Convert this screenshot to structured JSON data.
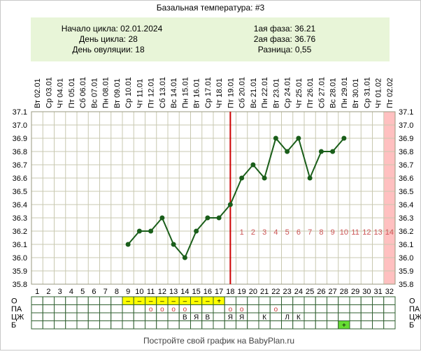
{
  "title": "Базальная температура: #3",
  "info": {
    "cycle_start": "Начало цикла: 02.01.2024",
    "cycle_day": "День цикла: 28",
    "ovulation_day": "День овуляции: 18",
    "phase1": "1ая фаза: 36.21",
    "phase2": "2ая фаза: 36.76",
    "difference": "Разница: 0,55"
  },
  "footer": "Постройте свой график на BabyPlan.ru",
  "chart_data": {
    "type": "line",
    "title": "Базальная температура: #3",
    "ylim": [
      35.8,
      37.1
    ],
    "y_ticks": [
      "35.8",
      "35.9",
      "36.0",
      "36.1",
      "36.2",
      "36.3",
      "36.4",
      "36.5",
      "36.6",
      "36.7",
      "36.8",
      "36.9",
      "37.0",
      "37.1"
    ],
    "dates": [
      "Вт 02.01",
      "Ср 03.01",
      "Чт 04.01",
      "Пт 05.01",
      "Сб 06.01",
      "Вс 07.01",
      "Пн 08.01",
      "Вт 09.01",
      "Ср 10.01",
      "Чт 11.01",
      "Пт 12.01",
      "Сб 13.01",
      "Вс 14.01",
      "Пн 15.01",
      "Вт 16.01",
      "Ср 17.01",
      "Чт 18.01",
      "Пт 19.01",
      "Сб 20.01",
      "Вс 21.01",
      "Пн 22.01",
      "Вт 23.01",
      "Ср 24.01",
      "Чт 25.01",
      "Пт 26.01",
      "Сб 27.01",
      "Вс 28.01",
      "Пн 29.01",
      "Вт 30.01",
      "Ср 31.01",
      "Чт 01.02",
      "Пт 02.02"
    ],
    "days": [
      1,
      2,
      3,
      4,
      5,
      6,
      7,
      8,
      9,
      10,
      11,
      12,
      13,
      14,
      15,
      16,
      17,
      18,
      19,
      20,
      21,
      22,
      23,
      24,
      25,
      26,
      27,
      28,
      29,
      30,
      31,
      32
    ],
    "series": [
      {
        "values": [
          null,
          null,
          null,
          null,
          null,
          null,
          null,
          null,
          36.1,
          36.2,
          36.2,
          36.3,
          36.1,
          36.0,
          36.2,
          36.3,
          36.3,
          36.4,
          36.6,
          36.7,
          36.6,
          36.9,
          36.8,
          36.9,
          36.6,
          36.8,
          36.8,
          36.9,
          null,
          null,
          null,
          null
        ]
      }
    ],
    "ovulation_day": 18,
    "luteal_labels": [
      "1",
      "2",
      "3",
      "4",
      "5",
      "6",
      "7",
      "8",
      "9",
      "10",
      "11",
      "12",
      "13",
      "14"
    ],
    "highlight_day": 32,
    "rows": {
      "labels": [
        "О",
        "ПА",
        "ЦЖ",
        "Б"
      ],
      "O": [
        "",
        "",
        "",
        "",
        "",
        "",
        "",
        "",
        "–",
        "–",
        "–",
        "–",
        "–",
        "–",
        "–",
        "–",
        "+",
        "",
        "",
        "",
        "",
        "",
        "",
        "",
        "",
        "",
        "",
        "",
        "",
        "",
        "",
        ""
      ],
      "PA": [
        "",
        "",
        "",
        "",
        "",
        "",
        "",
        "",
        "",
        "",
        "о",
        "о",
        "о",
        "о",
        "",
        "",
        "",
        "о",
        "о",
        "",
        "",
        "о",
        "",
        "",
        "",
        "",
        "",
        "",
        "",
        "",
        "",
        ""
      ],
      "CZh": [
        "",
        "",
        "",
        "",
        "",
        "",
        "",
        "",
        "",
        "",
        "",
        "",
        "",
        "В",
        "Я",
        "В",
        "",
        "Я",
        "Я",
        "",
        "К",
        "",
        "Л",
        "К",
        "",
        "",
        "",
        "",
        "",
        "",
        "",
        ""
      ],
      "B": [
        "",
        "",
        "",
        "",
        "",
        "",
        "",
        "",
        "",
        "",
        "",
        "",
        "",
        "",
        "",
        "",
        "",
        "",
        "",
        "",
        "",
        "",
        "",
        "",
        "",
        "",
        "",
        "+",
        "",
        "",
        "",
        ""
      ]
    },
    "colors": {
      "line": "#1a5e1a",
      "marker": "#1a5e1a",
      "ovulation": "#cc0000",
      "highlight": "#ffc0c0",
      "menses": "#ffff00",
      "bday": "#66dd33",
      "info_bg": "#e8f5d8",
      "grid": "#c8c8b0",
      "luteal": "#cc5555"
    }
  }
}
